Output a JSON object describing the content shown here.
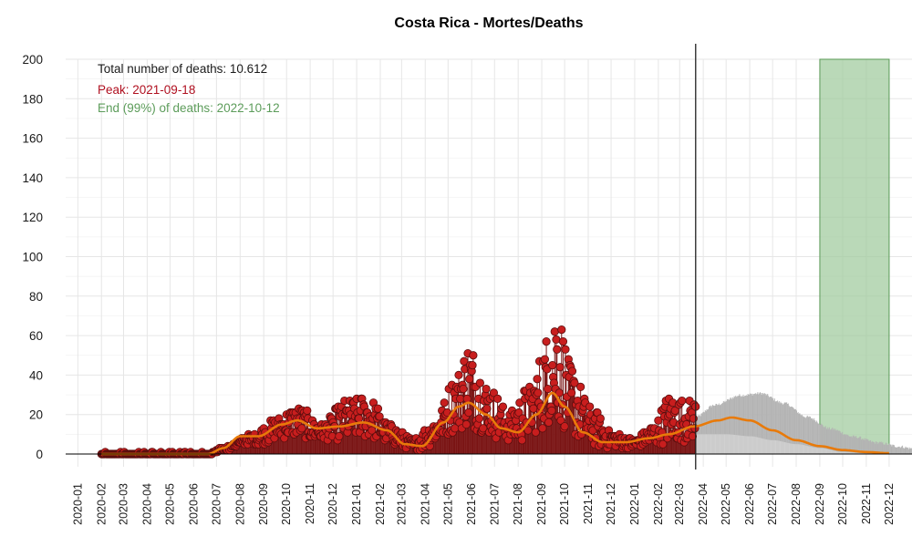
{
  "chart_data": {
    "type": "line",
    "title": "Costa Rica - Mortes/Deaths",
    "xlabel": "",
    "ylabel": "",
    "ylim": [
      0,
      200
    ],
    "y_ticks": [
      "0",
      "20",
      "40",
      "60",
      "80",
      "100",
      "120",
      "140",
      "160",
      "180",
      "200"
    ],
    "x_range": [
      "2019-12-16",
      "2022-12-31"
    ],
    "x_ticks": [
      "2020-01",
      "2020-02",
      "2020-03",
      "2020-04",
      "2020-05",
      "2020-06",
      "2020-07",
      "2020-08",
      "2020-09",
      "2020-10",
      "2020-11",
      "2020-12",
      "2021-01",
      "2021-02",
      "2021-03",
      "2021-04",
      "2021-05",
      "2021-06",
      "2021-07",
      "2021-08",
      "2021-09",
      "2021-10",
      "2021-11",
      "2021-12",
      "2022-01",
      "2022-02",
      "2022-03",
      "2022-04",
      "2022-05",
      "2022-06",
      "2022-07",
      "2022-08",
      "2022-09",
      "2022-10",
      "2022-11",
      "2022-12"
    ],
    "grid": true,
    "annotations": {
      "total": "Total number of deaths: 10.612",
      "peak": "Peak: 2021-09-18",
      "end": "End (99%) of deaths: 2022-10-12"
    },
    "vline_date": "2022-03-22",
    "highlight_band": [
      "2022-09-01",
      "2022-12-01"
    ],
    "observed_first_date": "2020-02-01",
    "observed_last_date": "2022-03-22",
    "projection_end_date": "2022-12-31",
    "smooth_knots": [
      [
        "2020-02-01",
        0
      ],
      [
        "2020-06-20",
        0
      ],
      [
        "2020-07-10",
        3
      ],
      [
        "2020-08-01",
        9
      ],
      [
        "2020-08-25",
        9
      ],
      [
        "2020-09-25",
        15
      ],
      [
        "2020-10-15",
        17
      ],
      [
        "2020-11-10",
        13
      ],
      [
        "2020-12-10",
        14
      ],
      [
        "2021-01-10",
        16
      ],
      [
        "2021-02-10",
        12
      ],
      [
        "2021-03-05",
        5
      ],
      [
        "2021-03-28",
        4
      ],
      [
        "2021-04-25",
        16
      ],
      [
        "2021-05-15",
        24
      ],
      [
        "2021-05-28",
        26
      ],
      [
        "2021-06-20",
        20
      ],
      [
        "2021-07-10",
        13
      ],
      [
        "2021-08-01",
        11
      ],
      [
        "2021-08-25",
        20
      ],
      [
        "2021-09-15",
        31
      ],
      [
        "2021-10-01",
        24
      ],
      [
        "2021-10-25",
        11
      ],
      [
        "2021-11-20",
        6
      ],
      [
        "2021-12-20",
        6
      ],
      [
        "2022-01-20",
        8
      ],
      [
        "2022-02-15",
        10
      ],
      [
        "2022-03-20",
        14
      ],
      [
        "2022-04-20",
        17
      ],
      [
        "2022-05-08",
        18.5
      ],
      [
        "2022-06-01",
        17
      ],
      [
        "2022-07-01",
        12
      ],
      [
        "2022-08-01",
        7
      ],
      [
        "2022-09-01",
        4
      ],
      [
        "2022-10-01",
        2
      ],
      [
        "2022-11-01",
        1
      ],
      [
        "2022-12-01",
        0.4
      ]
    ],
    "observed_knots": [
      [
        "2020-02-01",
        0
      ],
      [
        "2020-06-20",
        0
      ],
      [
        "2020-07-15",
        4
      ],
      [
        "2020-08-15",
        10
      ],
      [
        "2020-09-15",
        18
      ],
      [
        "2020-10-15",
        25
      ],
      [
        "2020-11-15",
        16
      ],
      [
        "2020-12-20",
        28
      ],
      [
        "2021-01-15",
        30
      ],
      [
        "2021-02-15",
        15
      ],
      [
        "2021-03-15",
        8
      ],
      [
        "2021-04-15",
        18
      ],
      [
        "2021-05-10",
        40
      ],
      [
        "2021-05-28",
        58
      ],
      [
        "2021-06-25",
        35
      ],
      [
        "2021-07-20",
        22
      ],
      [
        "2021-08-15",
        35
      ],
      [
        "2021-09-10",
        62
      ],
      [
        "2021-09-20",
        80
      ],
      [
        "2021-10-10",
        45
      ],
      [
        "2021-11-05",
        24
      ],
      [
        "2021-12-01",
        12
      ],
      [
        "2022-01-01",
        8
      ],
      [
        "2022-01-25",
        15
      ],
      [
        "2022-02-15",
        30
      ],
      [
        "2022-03-20",
        28
      ]
    ],
    "projection_upper_knots": [
      [
        "2022-03-22",
        18
      ],
      [
        "2022-04-15",
        24
      ],
      [
        "2022-05-20",
        29
      ],
      [
        "2022-06-15",
        30
      ],
      [
        "2022-07-15",
        25
      ],
      [
        "2022-08-15",
        18
      ],
      [
        "2022-09-15",
        12
      ],
      [
        "2022-10-15",
        8
      ],
      [
        "2022-11-15",
        5
      ],
      [
        "2022-12-15",
        3
      ],
      [
        "2022-12-31",
        2
      ]
    ],
    "projection_lower_knots": [
      [
        "2022-03-22",
        10
      ],
      [
        "2022-05-01",
        10
      ],
      [
        "2022-06-01",
        9
      ],
      [
        "2022-07-01",
        7
      ],
      [
        "2022-08-01",
        5
      ],
      [
        "2022-09-01",
        3
      ],
      [
        "2022-10-01",
        1
      ],
      [
        "2022-11-01",
        0.3
      ],
      [
        "2022-12-01",
        0
      ],
      [
        "2022-12-31",
        0
      ]
    ],
    "colors": {
      "points": "#c81e1e",
      "stems": "#7a1414",
      "smooth": "#e87a0a",
      "projection": "#b3b3b3",
      "band": "#9dc99a",
      "band_edge": "#5a9a56",
      "peak_text": "#b01020",
      "end_text": "#5c9c5a",
      "grid": "#e6e6e6",
      "baseline": "#000000"
    }
  }
}
